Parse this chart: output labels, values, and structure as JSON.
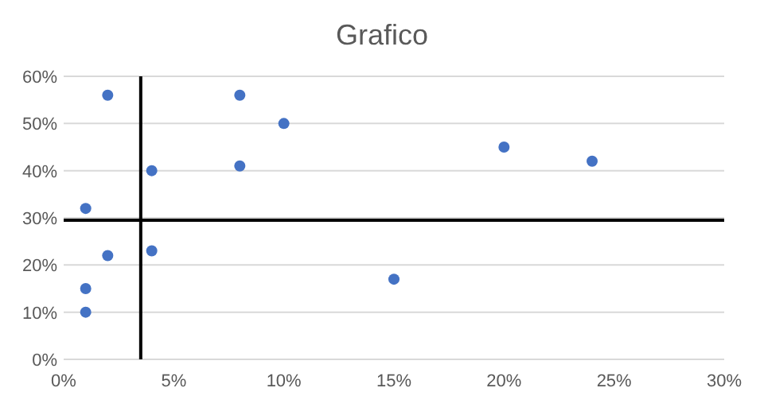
{
  "chart_data": {
    "type": "scatter",
    "title": "Grafico",
    "x": [
      2,
      8,
      10,
      4,
      8,
      20,
      24,
      1,
      2,
      4,
      15,
      1,
      1
    ],
    "values": [
      56,
      56,
      50,
      40,
      41,
      45,
      42,
      32,
      22,
      23,
      17,
      15,
      10
    ],
    "color": "#4472c4",
    "marker": "circle",
    "xlim": [
      0,
      30
    ],
    "xticks": [
      {
        "value": 0,
        "label": "0%"
      },
      {
        "value": 5,
        "label": "5%"
      },
      {
        "value": 10,
        "label": "10%"
      },
      {
        "value": 15,
        "label": "15%"
      },
      {
        "value": 20,
        "label": "20%"
      },
      {
        "value": 25,
        "label": "25%"
      },
      {
        "value": 30,
        "label": "30%"
      }
    ],
    "ylim": [
      0,
      60
    ],
    "yticks": [
      {
        "value": 0,
        "label": "0%"
      },
      {
        "value": 10,
        "label": "10%"
      },
      {
        "value": 20,
        "label": "20%"
      },
      {
        "value": 30,
        "label": "30%"
      },
      {
        "value": 40,
        "label": "40%"
      },
      {
        "value": 50,
        "label": "50%"
      },
      {
        "value": 60,
        "label": "60%"
      }
    ],
    "grid": "y",
    "ref_lines": [
      {
        "axis": "x",
        "value": 3.5,
        "color": "#000000"
      },
      {
        "axis": "y",
        "value": 29.5,
        "color": "#000000"
      }
    ]
  }
}
